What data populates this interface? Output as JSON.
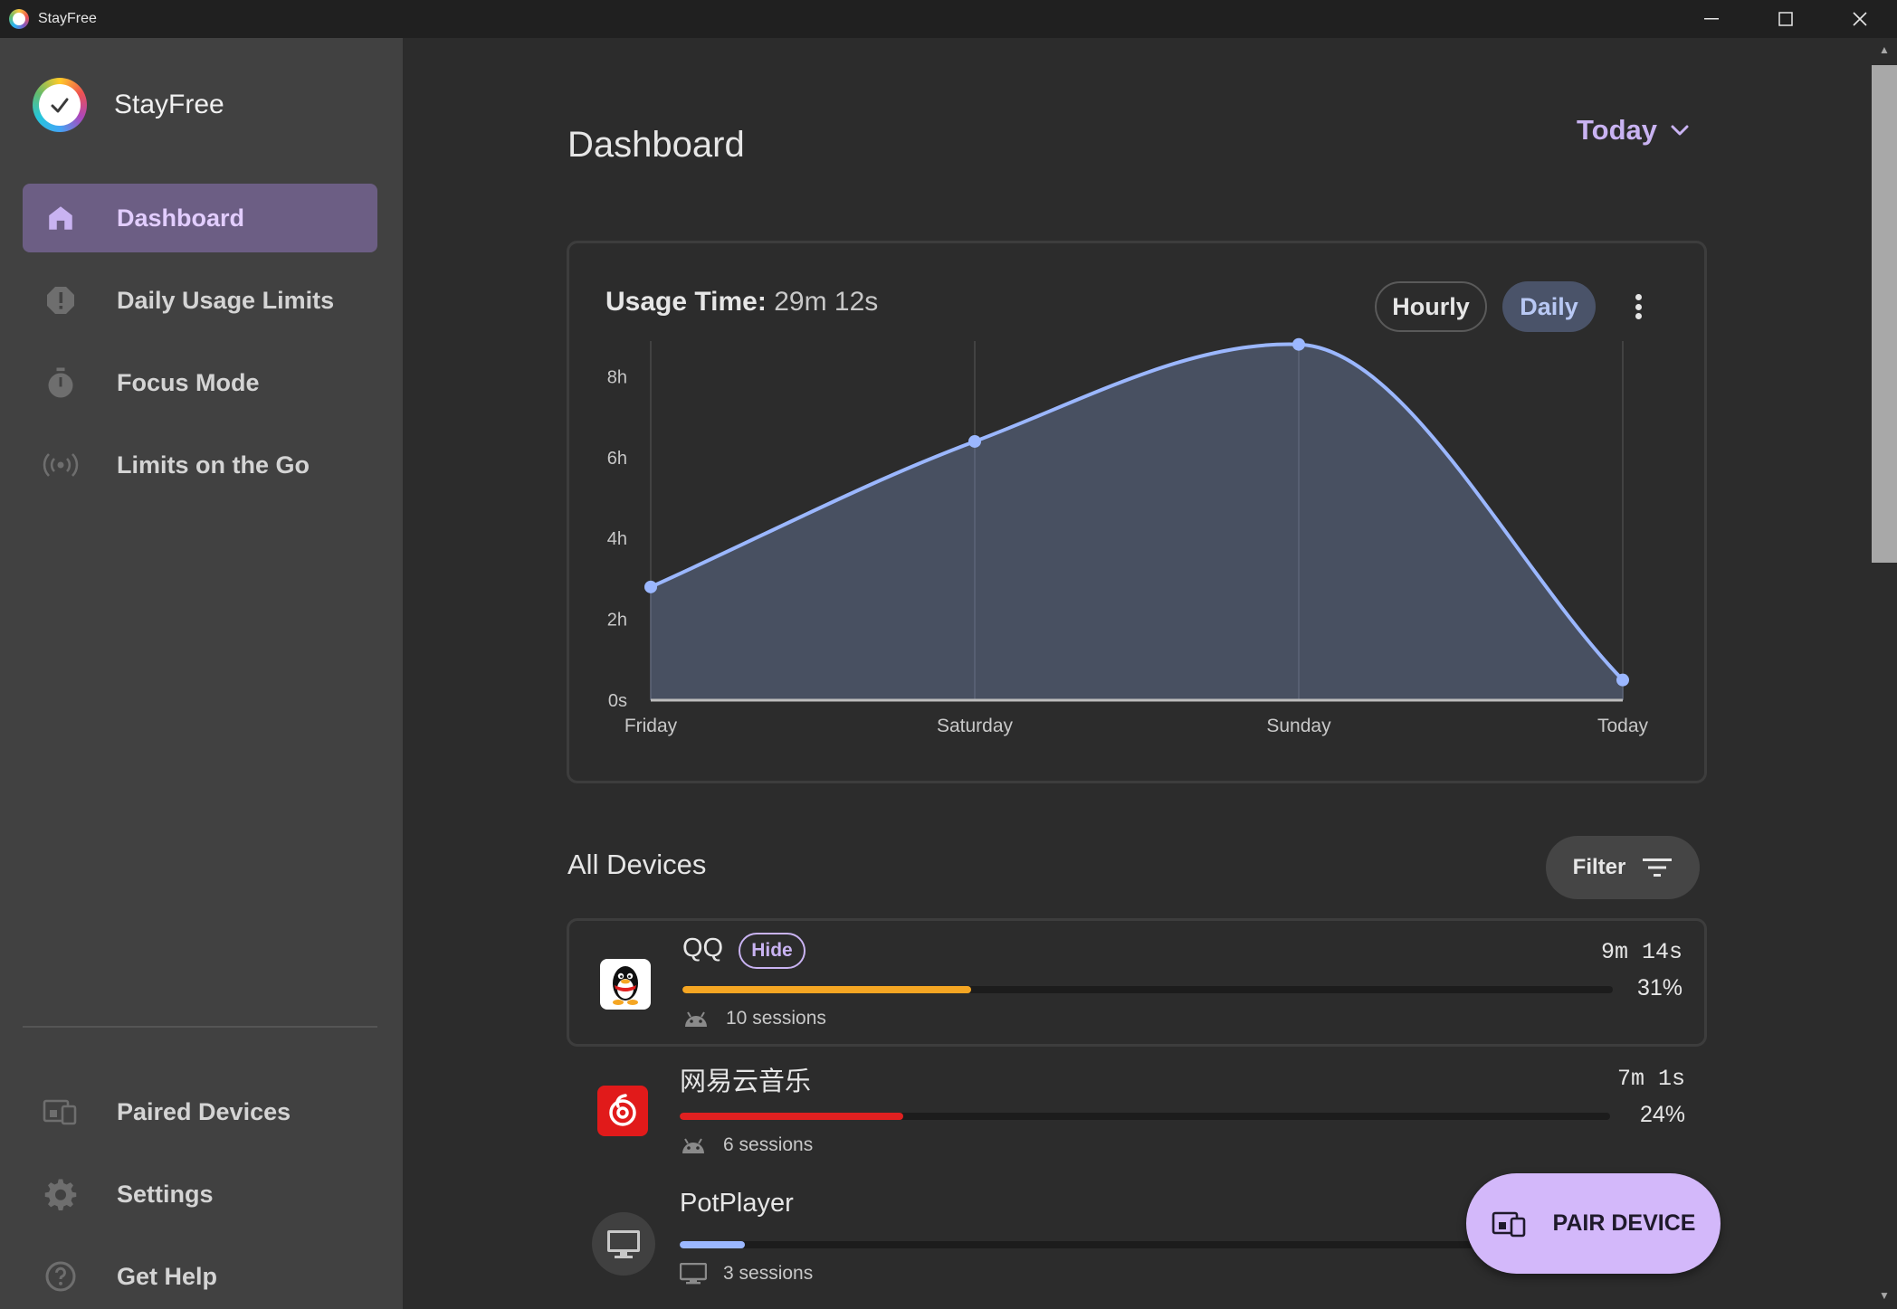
{
  "window": {
    "title": "StayFree"
  },
  "brand": {
    "name": "StayFree"
  },
  "nav": {
    "items": [
      {
        "label": "Dashboard",
        "icon": "home-icon"
      },
      {
        "label": "Daily Usage Limits",
        "icon": "limit-alert-icon"
      },
      {
        "label": "Focus Mode",
        "icon": "stopwatch-icon"
      },
      {
        "label": "Limits on the Go",
        "icon": "broadcast-icon"
      }
    ],
    "bottom_items": [
      {
        "label": "Paired Devices",
        "icon": "devices-icon"
      },
      {
        "label": "Settings",
        "icon": "gear-icon"
      },
      {
        "label": "Get Help",
        "icon": "help-icon"
      }
    ]
  },
  "main": {
    "title": "Dashboard",
    "range": "Today"
  },
  "usage": {
    "label": "Usage Time:",
    "value": "29m 12s",
    "hourly_label": "Hourly",
    "daily_label": "Daily"
  },
  "chart_data": {
    "type": "area",
    "categories": [
      "Friday",
      "Saturday",
      "Sunday",
      "Today"
    ],
    "values_hours": [
      2.8,
      6.4,
      8.8,
      0.5
    ],
    "y_ticks": [
      "0s",
      "2h",
      "4h",
      "6h",
      "8h"
    ],
    "ylim_hours": [
      0,
      9
    ],
    "line_color": "#9bb7ff",
    "fill_color": "#4a5264"
  },
  "devices": {
    "title": "All Devices",
    "filter_label": "Filter",
    "apps": [
      {
        "name": "QQ",
        "badge": "Hide",
        "duration": "9m 14s",
        "percent": "31%",
        "fraction": 0.31,
        "sessions": "10 sessions",
        "bar_color": "#f5a623",
        "platform_icon": "android-icon"
      },
      {
        "name": "网易云音乐",
        "duration": "7m  1s",
        "percent": "24%",
        "fraction": 0.24,
        "sessions": "6 sessions",
        "bar_color": "#e02020",
        "platform_icon": "android-icon"
      },
      {
        "name": "PotPlayer",
        "duration": "",
        "percent": "",
        "fraction": 0.07,
        "sessions": "3 sessions",
        "bar_color": "#9bb7ff",
        "platform_icon": "monitor-icon"
      }
    ]
  },
  "pair_button": {
    "label": "PAIR DEVICE"
  }
}
